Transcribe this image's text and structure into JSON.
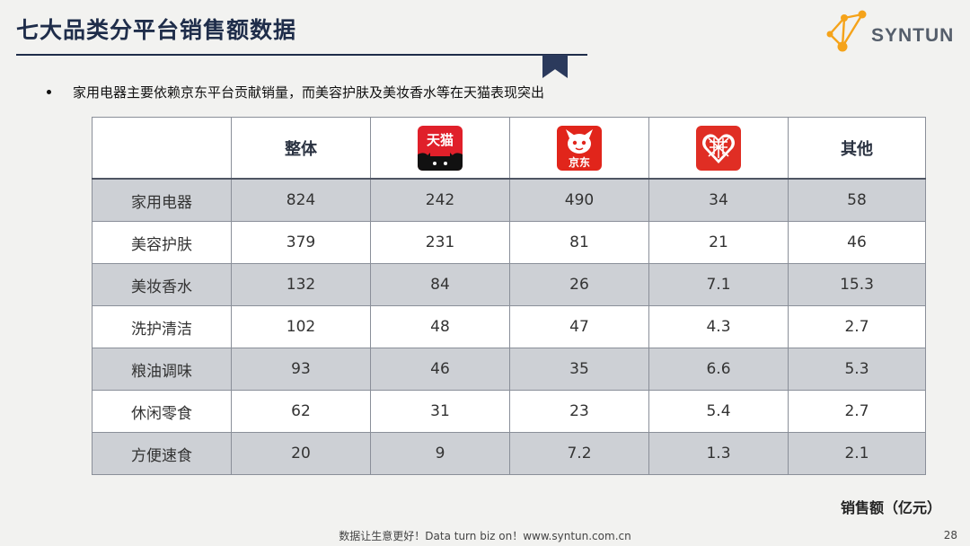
{
  "header": {
    "title": "七大品类分平台销售额数据",
    "logo_text": "SYNTUN"
  },
  "bullet_text": "家用电器主要依赖京东平台贡献销量，而美容护肤及美妆香水等在天猫表现突出",
  "table": {
    "columns": [
      {
        "label": "",
        "kind": "text"
      },
      {
        "label": "整体",
        "kind": "text"
      },
      {
        "label": "天猫",
        "kind": "icon",
        "icon": "tmall-logo-icon",
        "color": "#e0202a"
      },
      {
        "label": "京东",
        "kind": "icon",
        "icon": "jd-logo-icon",
        "color": "#e1251b"
      },
      {
        "label": "拼多多",
        "kind": "icon",
        "icon": "pinduoduo-logo-icon",
        "color": "#e02e24"
      },
      {
        "label": "其他",
        "kind": "text"
      }
    ],
    "rows": [
      [
        "家用电器",
        "824",
        "242",
        "490",
        "34",
        "58"
      ],
      [
        "美容护肤",
        "379",
        "231",
        "81",
        "21",
        "46"
      ],
      [
        "美妆香水",
        "132",
        "84",
        "26",
        "7.1",
        "15.3"
      ],
      [
        "洗护清洁",
        "102",
        "48",
        "47",
        "4.3",
        "2.7"
      ],
      [
        "粮油调味",
        "93",
        "46",
        "35",
        "6.6",
        "5.3"
      ],
      [
        "休闲零食",
        "62",
        "31",
        "23",
        "5.4",
        "2.7"
      ],
      [
        "方便速食",
        "20",
        "9",
        "7.2",
        "1.3",
        "2.1"
      ]
    ]
  },
  "unit_label": "销售额（亿元）",
  "footer": "数据让生意更好！Data turn biz on！www.syntun.com.cn",
  "page_number": "28",
  "colors": {
    "title": "#1f2d4a",
    "row_alt": "#cdd0d5",
    "logo_orange": "#f5a31a"
  }
}
